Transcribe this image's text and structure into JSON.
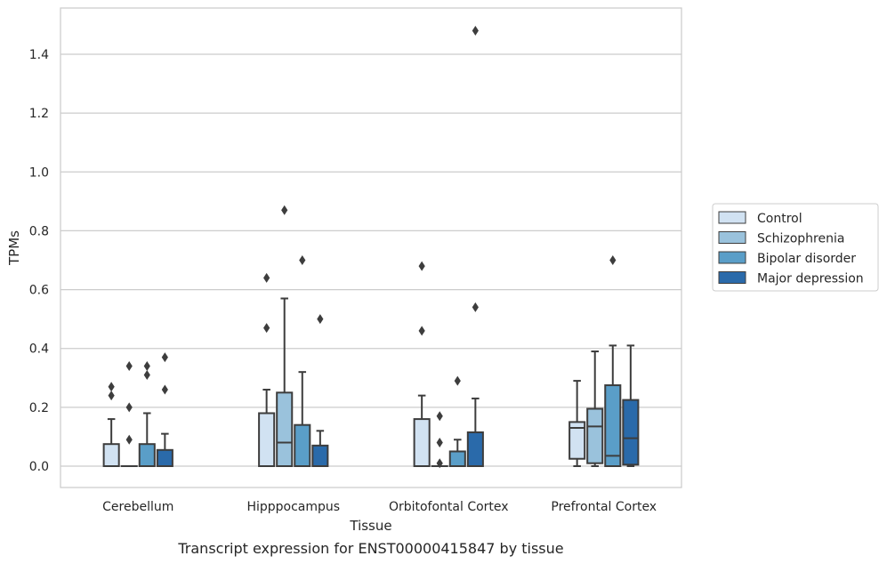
{
  "chart_data": {
    "type": "box",
    "xlabel": "Tissue",
    "ylabel": "TPMs",
    "caption": "Transcript expression for ENST00000415847 by tissue",
    "ylim": [
      -0.07,
      1.56
    ],
    "yticks": [
      0.0,
      0.2,
      0.4,
      0.6,
      0.8,
      1.0,
      1.2,
      1.4
    ],
    "ytick_labels": [
      "0.0",
      "0.2",
      "0.4",
      "0.6",
      "0.8",
      "1.0",
      "1.2",
      "1.4"
    ],
    "grid": "horizontal",
    "legend_placement": "center-right outside",
    "categories": [
      "Cerebellum",
      "Hipppocampus",
      "Orbitofontal Cortex",
      "Prefrontal Cortex"
    ],
    "series": [
      {
        "name": "Control",
        "color": "#d1e2f2",
        "boxes": [
          {
            "low": 0.0,
            "q1": 0.0,
            "median": 0.0,
            "q3": 0.075,
            "high": 0.16,
            "outliers": [
              0.24,
              0.27
            ]
          },
          {
            "low": 0.0,
            "q1": 0.0,
            "median": 0.0,
            "q3": 0.18,
            "high": 0.26,
            "outliers": [
              0.47,
              0.64
            ]
          },
          {
            "low": 0.0,
            "q1": 0.0,
            "median": 0.0,
            "q3": 0.16,
            "high": 0.24,
            "outliers": [
              0.46,
              0.68
            ]
          },
          {
            "low": 0.0,
            "q1": 0.025,
            "median": 0.13,
            "q3": 0.15,
            "high": 0.29,
            "outliers": []
          }
        ]
      },
      {
        "name": "Schizophrenia",
        "color": "#9ac2dc",
        "boxes": [
          {
            "low": 0.0,
            "q1": 0.0,
            "median": 0.0,
            "q3": 0.0,
            "high": 0.0,
            "outliers": [
              0.09,
              0.2,
              0.34
            ]
          },
          {
            "low": 0.0,
            "q1": 0.0,
            "median": 0.08,
            "q3": 0.25,
            "high": 0.57,
            "outliers": [
              0.87
            ]
          },
          {
            "low": 0.0,
            "q1": 0.0,
            "median": 0.0,
            "q3": 0.0,
            "high": 0.0,
            "outliers": [
              0.01,
              0.08,
              0.17
            ]
          },
          {
            "low": 0.0,
            "q1": 0.01,
            "median": 0.135,
            "q3": 0.195,
            "high": 0.39,
            "outliers": []
          }
        ]
      },
      {
        "name": "Bipolar disorder",
        "color": "#5a9ec8",
        "boxes": [
          {
            "low": 0.0,
            "q1": 0.0,
            "median": 0.0,
            "q3": 0.075,
            "high": 0.18,
            "outliers": [
              0.31,
              0.34
            ]
          },
          {
            "low": 0.0,
            "q1": 0.0,
            "median": 0.0,
            "q3": 0.14,
            "high": 0.32,
            "outliers": [
              0.7
            ]
          },
          {
            "low": 0.0,
            "q1": 0.0,
            "median": 0.0,
            "q3": 0.05,
            "high": 0.09,
            "outliers": [
              0.29
            ]
          },
          {
            "low": 0.0,
            "q1": 0.0,
            "median": 0.035,
            "q3": 0.275,
            "high": 0.41,
            "outliers": [
              0.7
            ]
          }
        ]
      },
      {
        "name": "Major depression",
        "color": "#2a6aaa",
        "boxes": [
          {
            "low": 0.0,
            "q1": 0.0,
            "median": 0.0,
            "q3": 0.055,
            "high": 0.11,
            "outliers": [
              0.26,
              0.37
            ]
          },
          {
            "low": 0.0,
            "q1": 0.0,
            "median": 0.0,
            "q3": 0.07,
            "high": 0.12,
            "outliers": [
              0.5
            ]
          },
          {
            "low": 0.0,
            "q1": 0.0,
            "median": 0.0,
            "q3": 0.115,
            "high": 0.23,
            "outliers": [
              0.54,
              1.48
            ]
          },
          {
            "low": 0.0,
            "q1": 0.005,
            "median": 0.095,
            "q3": 0.225,
            "high": 0.41,
            "outliers": []
          }
        ]
      }
    ]
  }
}
